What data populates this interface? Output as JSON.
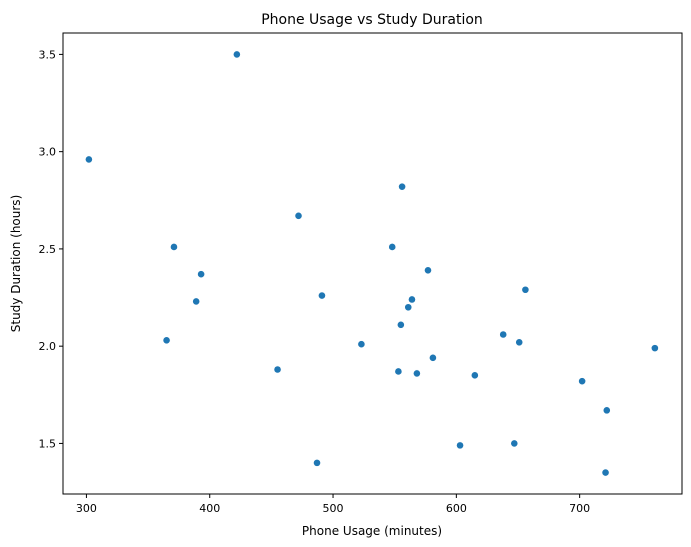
{
  "chart_data": {
    "type": "scatter",
    "title": "Phone Usage vs Study Duration",
    "xlabel": "Phone Usage (minutes)",
    "ylabel": "Study Duration (hours)",
    "xlim": [
      281,
      783
    ],
    "ylim": [
      1.24,
      3.61
    ],
    "xticks": [
      300,
      400,
      500,
      600,
      700
    ],
    "yticks": [
      1.5,
      2.0,
      2.5,
      3.0,
      3.5
    ],
    "grid": false,
    "marker_color": "#1f77b4",
    "points": [
      {
        "x": 302,
        "y": 2.96
      },
      {
        "x": 365,
        "y": 2.03
      },
      {
        "x": 371,
        "y": 2.51
      },
      {
        "x": 389,
        "y": 2.23
      },
      {
        "x": 393,
        "y": 2.37
      },
      {
        "x": 422,
        "y": 3.5
      },
      {
        "x": 455,
        "y": 1.88
      },
      {
        "x": 472,
        "y": 2.67
      },
      {
        "x": 487,
        "y": 1.4
      },
      {
        "x": 491,
        "y": 2.26
      },
      {
        "x": 523,
        "y": 2.01
      },
      {
        "x": 548,
        "y": 2.51
      },
      {
        "x": 553,
        "y": 1.87
      },
      {
        "x": 555,
        "y": 2.11
      },
      {
        "x": 556,
        "y": 2.82
      },
      {
        "x": 561,
        "y": 2.2
      },
      {
        "x": 564,
        "y": 2.24
      },
      {
        "x": 568,
        "y": 1.86
      },
      {
        "x": 577,
        "y": 2.39
      },
      {
        "x": 581,
        "y": 1.94
      },
      {
        "x": 603,
        "y": 1.49
      },
      {
        "x": 615,
        "y": 1.85
      },
      {
        "x": 638,
        "y": 2.06
      },
      {
        "x": 647,
        "y": 1.5
      },
      {
        "x": 651,
        "y": 2.02
      },
      {
        "x": 656,
        "y": 2.29
      },
      {
        "x": 702,
        "y": 1.82
      },
      {
        "x": 721,
        "y": 1.35
      },
      {
        "x": 722,
        "y": 1.67
      },
      {
        "x": 761,
        "y": 1.99
      }
    ]
  }
}
